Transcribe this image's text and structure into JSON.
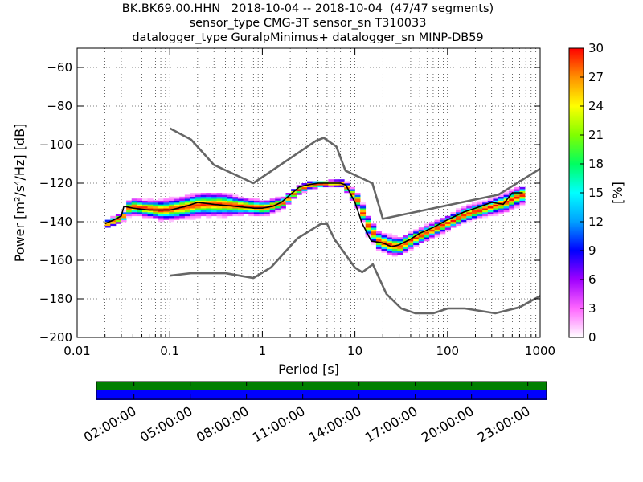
{
  "title_lines": [
    "BK.BK69.00.HHN   2018-10-04 -- 2018-10-04  (47/47 segments)",
    "sensor_type CMG-3T sensor_sn T310033",
    "datalogger_type GuralpMinimus+ datalogger_sn MINP-DB59"
  ],
  "chart_data": {
    "type": "heatmap",
    "subtype": "probabilistic-power-spectral-density",
    "xlabel": "Period [s]",
    "ylabel": "Power [m²/s⁴/Hz] [dB]",
    "xscale": "log",
    "xlim": [
      0.01,
      1000
    ],
    "ylim": [
      -200,
      -50
    ],
    "grid": true,
    "x_ticks": [
      0.01,
      0.1,
      1,
      10,
      100,
      1000
    ],
    "x_tick_labels": [
      "0.01",
      "0.1",
      "1",
      "10",
      "100",
      "1000"
    ],
    "y_ticks": [
      -200,
      -180,
      -160,
      -140,
      -120,
      -100,
      -80,
      -60
    ],
    "y_tick_labels": [
      "−200",
      "−180",
      "−160",
      "−140",
      "−120",
      "−100",
      "−80",
      "−60"
    ],
    "colorbar": {
      "label": "[%]",
      "min": 0,
      "max": 30,
      "ticks": [
        0,
        3,
        6,
        9,
        12,
        15,
        18,
        21,
        24,
        27,
        30
      ],
      "colors": [
        "#ffffff",
        "#ff66ff",
        "#a000ff",
        "#0000ff",
        "#00a0ff",
        "#00ffff",
        "#00ff60",
        "#80ff00",
        "#ffff00",
        "#ff9000",
        "#ff0000"
      ]
    },
    "mode_curve": {
      "name": "mode",
      "x": [
        0.02,
        0.025,
        0.03,
        0.032,
        0.04,
        0.06,
        0.1,
        0.15,
        0.2,
        0.3,
        0.5,
        0.8,
        1,
        1.3,
        1.6,
        2,
        2.5,
        3,
        4,
        5,
        6,
        7,
        8,
        10,
        12,
        15,
        20,
        25,
        30,
        40,
        50,
        70,
        100,
        150,
        200,
        300,
        400,
        500,
        650
      ],
      "y": [
        -141,
        -139,
        -137,
        -132,
        -133,
        -134,
        -134,
        -132,
        -130,
        -131,
        -132,
        -133,
        -133,
        -132,
        -130,
        -126,
        -122,
        -121,
        -120,
        -120,
        -120,
        -120,
        -121,
        -130,
        -141,
        -150,
        -151,
        -153,
        -152,
        -149,
        -146,
        -143,
        -139,
        -135,
        -133,
        -130,
        -131,
        -125,
        -125
      ]
    },
    "histogram_bins": [
      {
        "x": 0.02,
        "ylo": -144,
        "yhi": -139,
        "peak": -141
      },
      {
        "x": 0.025,
        "ylo": -142,
        "yhi": -136,
        "peak": -139
      },
      {
        "x": 0.03,
        "ylo": -140,
        "yhi": -134,
        "peak": -137
      },
      {
        "x": 0.035,
        "ylo": -138,
        "yhi": -128,
        "peak": -132
      },
      {
        "x": 0.05,
        "ylo": -138,
        "yhi": -128,
        "peak": -133
      },
      {
        "x": 0.08,
        "ylo": -140,
        "yhi": -128,
        "peak": -134
      },
      {
        "x": 0.12,
        "ylo": -140,
        "yhi": -127,
        "peak": -133
      },
      {
        "x": 0.2,
        "ylo": -139,
        "yhi": -125,
        "peak": -131
      },
      {
        "x": 0.35,
        "ylo": -139,
        "yhi": -125,
        "peak": -131
      },
      {
        "x": 0.6,
        "ylo": -138,
        "yhi": -128,
        "peak": -132
      },
      {
        "x": 1,
        "ylo": -137,
        "yhi": -128,
        "peak": -133
      },
      {
        "x": 1.6,
        "ylo": -134,
        "yhi": -127,
        "peak": -130
      },
      {
        "x": 2.2,
        "ylo": -127,
        "yhi": -121,
        "peak": -124
      },
      {
        "x": 3,
        "ylo": -124,
        "yhi": -119,
        "peak": -121
      },
      {
        "x": 5,
        "ylo": -123,
        "yhi": -119,
        "peak": -120
      },
      {
        "x": 7,
        "ylo": -123,
        "yhi": -118,
        "peak": -120
      },
      {
        "x": 10,
        "ylo": -133,
        "yhi": -124,
        "peak": -129
      },
      {
        "x": 13,
        "ylo": -148,
        "yhi": -136,
        "peak": -142
      },
      {
        "x": 17,
        "ylo": -155,
        "yhi": -144,
        "peak": -150
      },
      {
        "x": 22,
        "ylo": -157,
        "yhi": -146,
        "peak": -152
      },
      {
        "x": 28,
        "ylo": -158,
        "yhi": -147,
        "peak": -153
      },
      {
        "x": 40,
        "ylo": -155,
        "yhi": -145,
        "peak": -149
      },
      {
        "x": 60,
        "ylo": -150,
        "yhi": -141,
        "peak": -145
      },
      {
        "x": 100,
        "ylo": -145,
        "yhi": -136,
        "peak": -140
      },
      {
        "x": 150,
        "ylo": -141,
        "yhi": -132,
        "peak": -136
      },
      {
        "x": 250,
        "ylo": -137,
        "yhi": -128,
        "peak": -133
      },
      {
        "x": 400,
        "ylo": -135,
        "yhi": -124,
        "peak": -130
      },
      {
        "x": 600,
        "ylo": -133,
        "yhi": -122,
        "peak": -126
      }
    ],
    "noise_models": [
      {
        "name": "high-noise-model",
        "x": [
          0.1,
          0.17,
          0.3,
          0.8,
          3.8,
          4.6,
          6.3,
          7.9,
          15.4,
          20,
          354.8,
          1000
        ],
        "y": [
          -91.5,
          -97.4,
          -110.5,
          -120,
          -98,
          -96.5,
          -101,
          -113.5,
          -120,
          -138.5,
          -126,
          -112.5
        ]
      },
      {
        "name": "low-noise-model",
        "x": [
          0.1,
          0.17,
          0.4,
          0.8,
          1.24,
          2.4,
          4.3,
          5,
          6,
          10,
          12,
          15.6,
          21.9,
          31.6,
          45,
          70,
          101,
          154,
          328,
          600,
          1000
        ],
        "y": [
          -168,
          -166.7,
          -166.7,
          -169.2,
          -163.7,
          -148.6,
          -141.1,
          -141.1,
          -149,
          -163.8,
          -166.2,
          -162.1,
          -177.5,
          -185,
          -187.5,
          -187.5,
          -185,
          -185,
          -187.5,
          -184.4,
          -178.5
        ]
      }
    ],
    "timeline": {
      "tick_labels": [
        "02:00:00",
        "05:00:00",
        "08:00:00",
        "11:00:00",
        "14:00:00",
        "17:00:00",
        "20:00:00",
        "23:00:00"
      ],
      "rows": [
        {
          "name": "data-coverage",
          "color": "#007f00"
        },
        {
          "name": "processed-segments",
          "color": "#0000ff"
        }
      ],
      "hours_start": 0,
      "hours_end": 24
    }
  }
}
